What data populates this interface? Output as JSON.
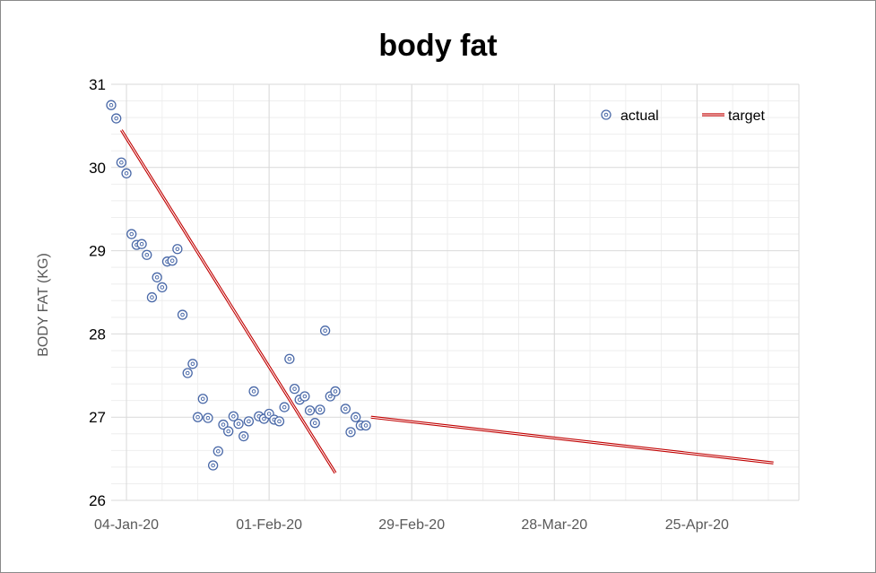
{
  "chart_data": {
    "type": "scatter",
    "title": "body fat",
    "xlabel": "",
    "ylabel": "BODY FAT (KG)",
    "xlim": [
      "2020-01-01",
      "2020-05-15"
    ],
    "ylim": [
      26,
      31
    ],
    "x_ticks": [
      "2020-01-04",
      "2020-02-01",
      "2020-02-29",
      "2020-03-28",
      "2020-04-25"
    ],
    "x_tick_labels": [
      "04-Jan-20",
      "01-Feb-20",
      "29-Feb-20",
      "28-Mar-20",
      "25-Apr-20"
    ],
    "y_ticks": [
      26,
      27,
      28,
      29,
      30,
      31
    ],
    "grid": true,
    "legend_position": "top-right",
    "colors": {
      "actual": "#4a69a8",
      "target": "#c00000"
    },
    "series": [
      {
        "name": "actual",
        "kind": "scatter",
        "points": [
          [
            "2020-01-01",
            30.75
          ],
          [
            "2020-01-02",
            30.59
          ],
          [
            "2020-01-03",
            30.06
          ],
          [
            "2020-01-04",
            29.93
          ],
          [
            "2020-01-05",
            29.2
          ],
          [
            "2020-01-06",
            29.07
          ],
          [
            "2020-01-07",
            29.08
          ],
          [
            "2020-01-08",
            28.95
          ],
          [
            "2020-01-09",
            28.44
          ],
          [
            "2020-01-10",
            28.68
          ],
          [
            "2020-01-11",
            28.56
          ],
          [
            "2020-01-12",
            28.87
          ],
          [
            "2020-01-13",
            28.88
          ],
          [
            "2020-01-14",
            29.02
          ],
          [
            "2020-01-15",
            28.23
          ],
          [
            "2020-01-16",
            27.53
          ],
          [
            "2020-01-17",
            27.64
          ],
          [
            "2020-01-18",
            27.0
          ],
          [
            "2020-01-19",
            27.22
          ],
          [
            "2020-01-20",
            26.99
          ],
          [
            "2020-01-21",
            26.42
          ],
          [
            "2020-01-22",
            26.59
          ],
          [
            "2020-01-23",
            26.91
          ],
          [
            "2020-01-24",
            26.83
          ],
          [
            "2020-01-25",
            27.01
          ],
          [
            "2020-01-26",
            26.92
          ],
          [
            "2020-01-27",
            26.77
          ],
          [
            "2020-01-28",
            26.95
          ],
          [
            "2020-01-29",
            27.31
          ],
          [
            "2020-01-30",
            27.01
          ],
          [
            "2020-01-31",
            26.98
          ],
          [
            "2020-02-01",
            27.04
          ],
          [
            "2020-02-02",
            26.97
          ],
          [
            "2020-02-03",
            26.95
          ],
          [
            "2020-02-04",
            27.12
          ],
          [
            "2020-02-05",
            27.7
          ],
          [
            "2020-02-06",
            27.34
          ],
          [
            "2020-02-07",
            27.21
          ],
          [
            "2020-02-08",
            27.25
          ],
          [
            "2020-02-09",
            27.08
          ],
          [
            "2020-02-10",
            26.93
          ],
          [
            "2020-02-11",
            27.09
          ],
          [
            "2020-02-12",
            28.04
          ],
          [
            "2020-02-13",
            27.25
          ],
          [
            "2020-02-14",
            27.31
          ],
          [
            "2020-02-16",
            27.1
          ],
          [
            "2020-02-17",
            26.82
          ],
          [
            "2020-02-18",
            27.0
          ],
          [
            "2020-02-19",
            26.9
          ],
          [
            "2020-02-20",
            26.9
          ]
        ]
      },
      {
        "name": "target",
        "kind": "line",
        "segments": [
          [
            [
              "2020-01-03",
              30.45
            ],
            [
              "2020-02-14",
              26.33
            ]
          ],
          [
            [
              "2020-02-21",
              27.0
            ],
            [
              "2020-05-10",
              26.45
            ]
          ]
        ]
      }
    ]
  }
}
